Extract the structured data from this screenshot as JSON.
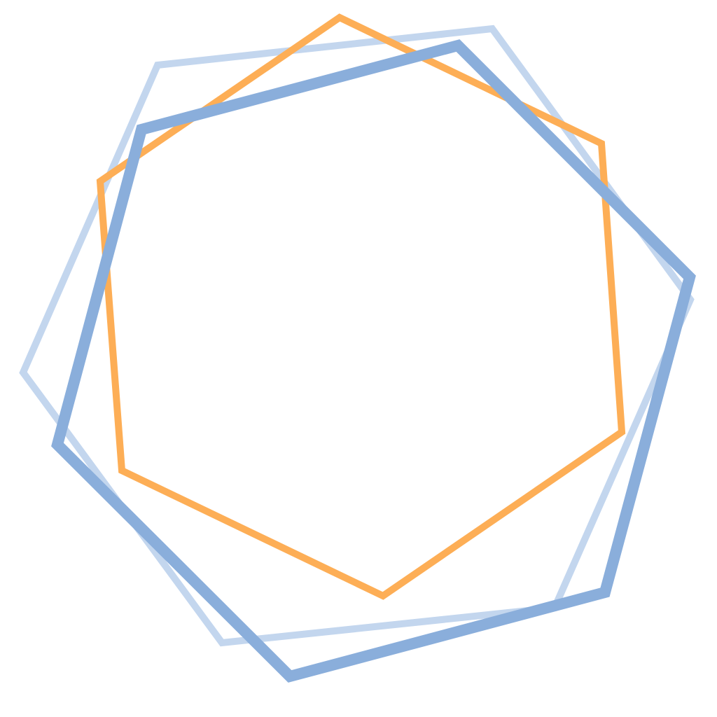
{
  "shapes": [
    {
      "id": "light-blue",
      "name": "light-blue-hexagon",
      "color": "#c3d6ee"
    },
    {
      "id": "orange",
      "name": "orange-hexagon",
      "color": "#fdae56"
    },
    {
      "id": "blue",
      "name": "blue-hexagon",
      "color": "#8aaedb"
    }
  ]
}
